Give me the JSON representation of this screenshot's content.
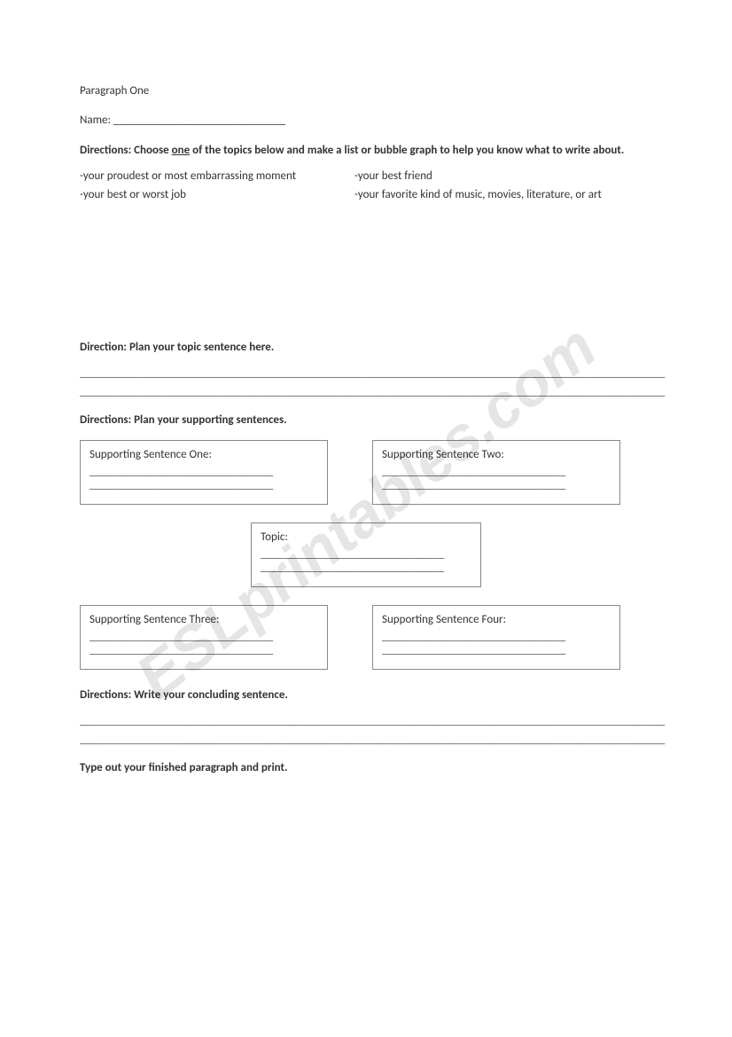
{
  "watermark": "ESLprintables.com",
  "title": "Paragraph One",
  "name": {
    "label": "Name: ",
    "blank": "______________________________"
  },
  "directions1": {
    "prefix": "Directions: Choose ",
    "underlined": "one",
    "suffix": " of the topics below and make a list or bubble graph to help you know what to write about."
  },
  "topics": {
    "left1": "-your proudest or most embarrassing moment",
    "right1": "-your best friend",
    "left2": "-your best or worst job",
    "right2": "-your favorite kind of music, movies, literature, or art"
  },
  "directions2": "Direction: Plan your topic sentence here.",
  "long_blank1": "______________________________________________________________________________________________________",
  "long_blank2": "______________________________________________________________________________________________________",
  "directions3": "Directions: Plan your supporting sentences.",
  "boxes": {
    "s1": {
      "label": "Supporting Sentence One:",
      "line1": "________________________________",
      "line2": "________________________________"
    },
    "s2": {
      "label": "Supporting Sentence Two:",
      "line1": "________________________________",
      "line2": "________________________________"
    },
    "topic": {
      "label": "Topic:",
      "line1": "________________________________",
      "line2": "________________________________"
    },
    "s3": {
      "label": "Supporting Sentence Three:",
      "line1": "________________________________",
      "line2": "________________________________"
    },
    "s4": {
      "label": "Supporting Sentence Four:",
      "line1": "________________________________",
      "line2": "________________________________"
    }
  },
  "directions4": "Directions: Write your concluding sentence.",
  "long_blank3": "______________________________________________________________________________________________________",
  "long_blank4": "______________________________________________________________________________________________________",
  "directions5": "Type out your finished paragraph and print."
}
